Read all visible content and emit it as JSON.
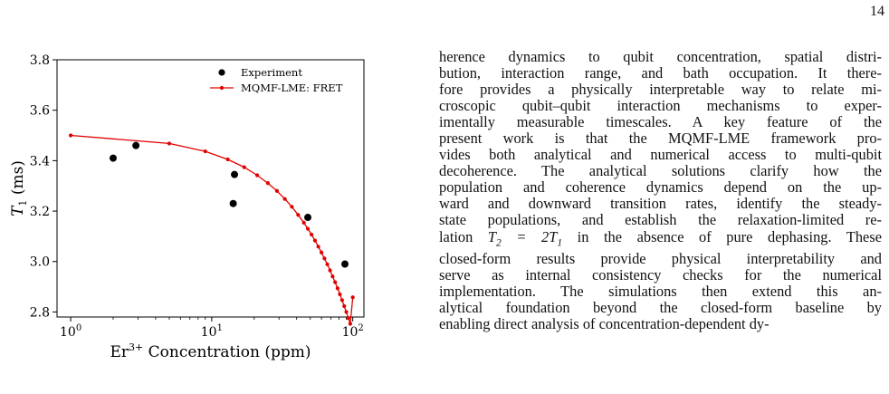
{
  "page_number": "14",
  "chart_data": {
    "type": "scatter",
    "xscale": "log",
    "xlim": [
      0.8,
      120
    ],
    "ylim": [
      2.78,
      3.8
    ],
    "xlabel_base": "Er",
    "xlabel_sup": "3+",
    "xlabel_rest": " Concentration (ppm)",
    "ylabel_var": "T",
    "ylabel_sub": "1",
    "ylabel_unit": " (ms)",
    "yticks": [
      {
        "value": 2.8,
        "label": "2.8"
      },
      {
        "value": 3.0,
        "label": "3.0"
      },
      {
        "value": 3.2,
        "label": "3.2"
      },
      {
        "value": 3.4,
        "label": "3.4"
      },
      {
        "value": 3.6,
        "label": "3.6"
      },
      {
        "value": 3.8,
        "label": "3.8"
      }
    ],
    "xticks": [
      {
        "value": 1,
        "base": "10",
        "exp": "0"
      },
      {
        "value": 10,
        "base": "10",
        "exp": "1"
      },
      {
        "value": 100,
        "base": "10",
        "exp": "2"
      }
    ],
    "legend_position": "top-right",
    "series": [
      {
        "name": "Experiment",
        "kind": "scatter",
        "color": "#000000",
        "x": [
          2.0,
          2.9,
          14.2,
          14.5,
          48,
          88
        ],
        "y": [
          3.41,
          3.46,
          3.23,
          3.345,
          3.175,
          2.99
        ]
      },
      {
        "name": "MQMF-LME: FRET",
        "kind": "line",
        "color": "#e00000",
        "x": [
          1.0,
          5.0,
          9.0,
          13.0,
          17.0,
          21.0,
          25.0,
          29.0,
          33.0,
          37.0,
          41.0,
          45.0,
          48.0,
          51.0,
          54.0,
          57.0,
          60.0,
          63.0,
          66.0,
          69.0,
          72.0,
          75.0,
          78.0,
          81.0,
          84.0,
          87.0,
          90.0,
          93.0,
          96.0,
          100.0
        ],
        "y": [
          3.5,
          3.468,
          3.437,
          3.405,
          3.374,
          3.342,
          3.311,
          3.28,
          3.248,
          3.217,
          3.185,
          3.154,
          3.13,
          3.107,
          3.083,
          3.059,
          3.036,
          3.012,
          2.989,
          2.965,
          2.941,
          2.918,
          2.894,
          2.87,
          2.847,
          2.823,
          2.8,
          2.776,
          2.753,
          2.858
        ]
      }
    ]
  },
  "text_lines": [
    "herence dynamics to qubit concentration, spatial distri-",
    "bution, interaction range, and bath occupation. It there-",
    "fore provides a physically interpretable way to relate mi-",
    "croscopic qubit–qubit interaction mechanisms to exper-",
    "imentally measurable timescales.  A key feature of the",
    "present work is that the MQMF-LME framework pro-",
    "vides both analytical and numerical access to multi-qubit",
    "decoherence.  The analytical solutions clarify how the",
    "population and coherence dynamics depend on the up-",
    "ward and downward transition rates, identify the steady-",
    "state populations, and establish the relaxation-limited re-",
    "lation T2 = 2T1 in the absence of pure dephasing. These",
    "closed-form results provide physical interpretability and",
    "serve as internal consistency checks for the numerical",
    "implementation.  The simulations then extend this an-",
    "alytical foundation beyond the closed-form baseline by",
    "enabling direct analysis of concentration-dependent dy-"
  ]
}
